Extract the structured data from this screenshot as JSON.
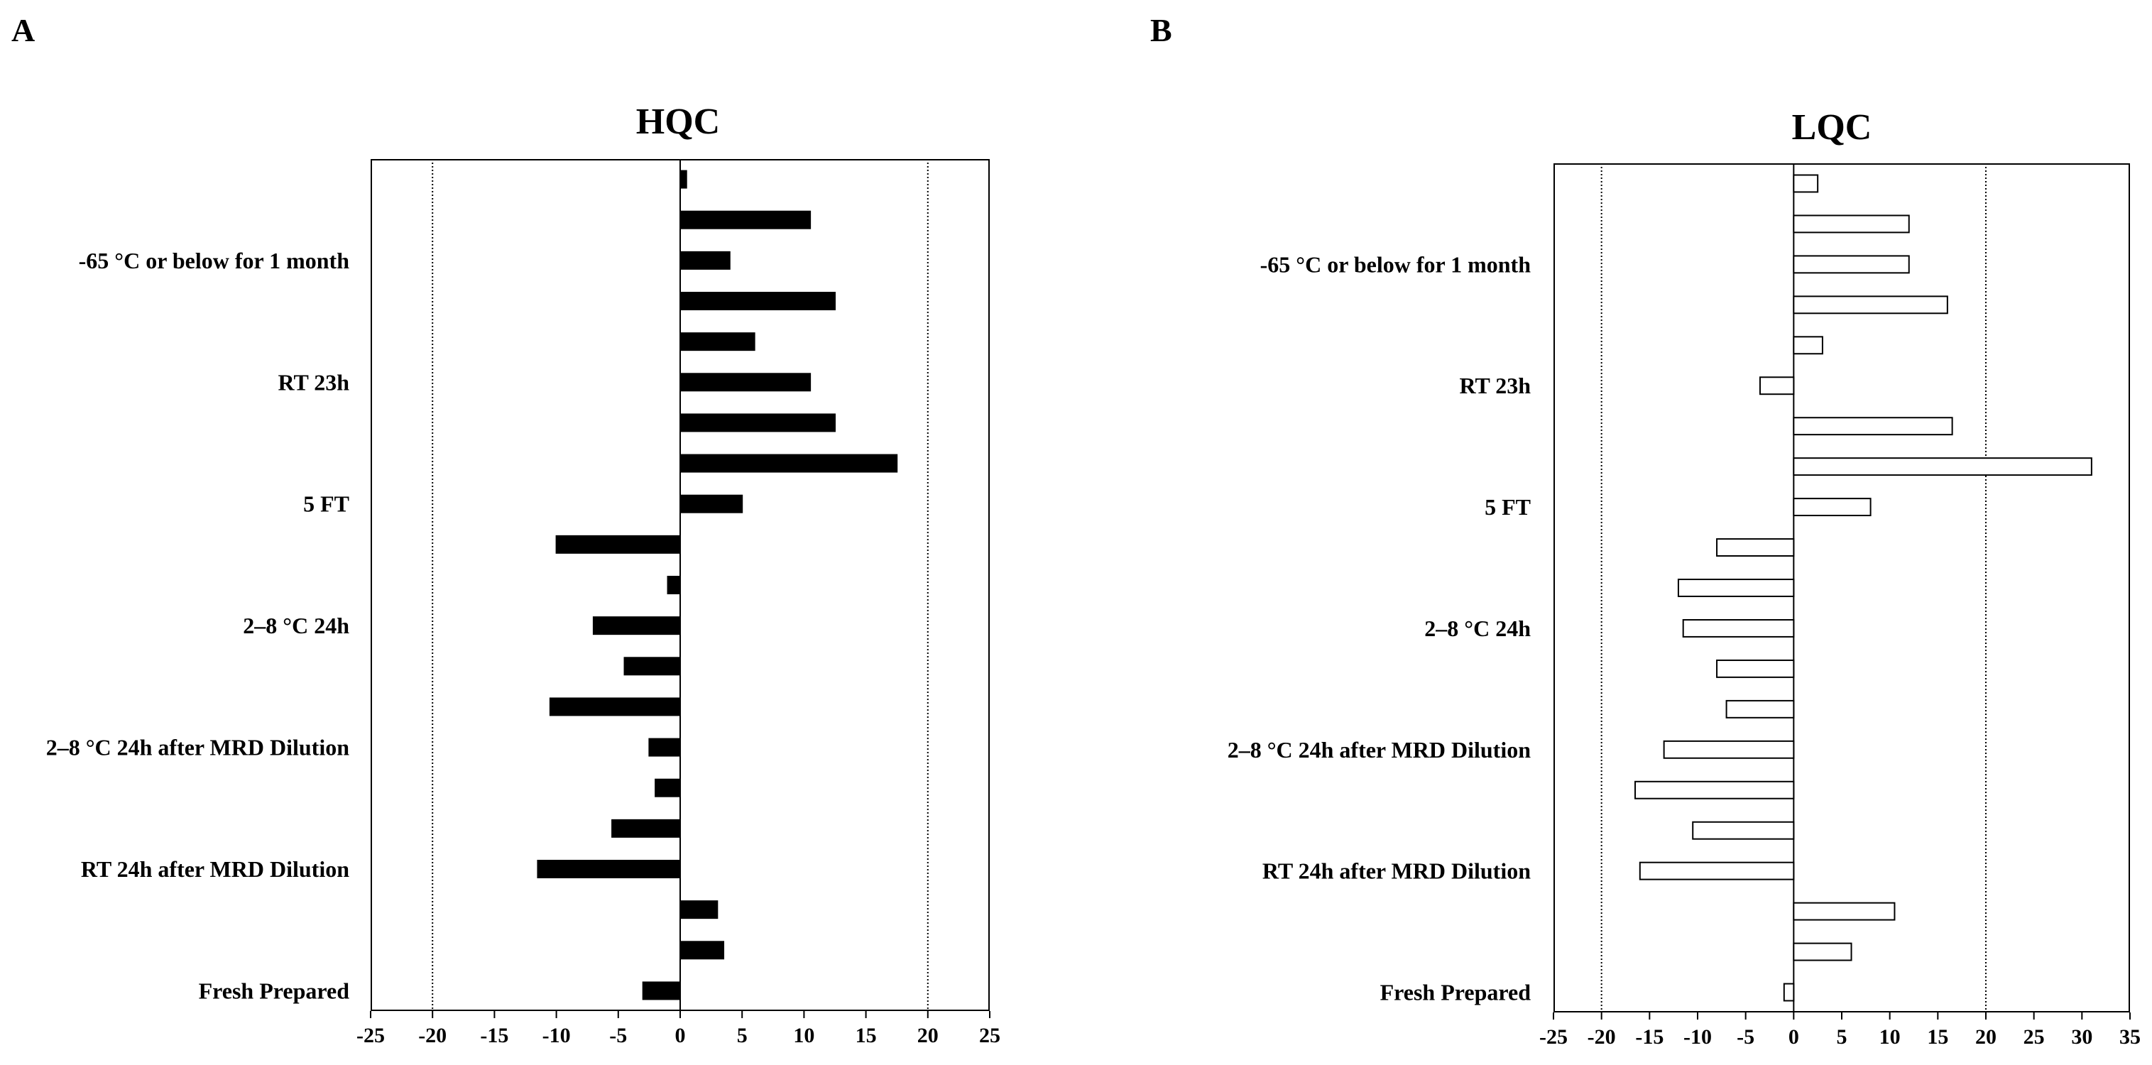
{
  "panels": [
    {
      "letter": "A"
    },
    {
      "letter": "B"
    }
  ],
  "chart_data": [
    {
      "type": "bar",
      "orientation": "horizontal",
      "title": "HQC",
      "fill": "#000000",
      "categories_top_to_bottom": [
        "-65 °C or below for 1 month",
        "RT 23h",
        "5 FT",
        "2–8 °C 24h",
        "2–8 °C 24h after MRD Dilution",
        "RT 24h after MRD Dilution",
        "Fresh Prepared"
      ],
      "values_top_to_bottom": [
        0.5,
        10.5,
        4,
        12.5,
        6,
        10.5,
        12.5,
        17.5,
        5,
        -10,
        -1,
        -7,
        -4.5,
        -10.5,
        -2.5,
        -2,
        -5.5,
        -11.5,
        3,
        3.5,
        -3
      ],
      "category_bar_index": [
        2,
        5,
        8,
        11,
        14,
        17,
        20
      ],
      "xlim": [
        -25,
        25
      ],
      "xticks": [
        "-25",
        "-20",
        "-15",
        "-10",
        "-5",
        "0",
        "5",
        "10",
        "15",
        "20",
        "25"
      ],
      "xtick_values": [
        -25,
        -20,
        -15,
        -10,
        -5,
        0,
        5,
        10,
        15,
        20,
        25
      ],
      "reference_lines": [
        -20,
        20
      ]
    },
    {
      "type": "bar",
      "orientation": "horizontal",
      "title": "LQC",
      "fill": "#ffffff",
      "categories_top_to_bottom": [
        "-65 °C or below for 1 month",
        "RT 23h",
        "5 FT",
        "2–8 °C 24h",
        "2–8 °C 24h after MRD  Dilution",
        "RT 24h after MRD Dilution",
        "Fresh Prepared"
      ],
      "values_top_to_bottom": [
        2.5,
        12,
        12,
        16,
        3,
        -3.5,
        16.5,
        31,
        8,
        -8,
        -12,
        -11.5,
        -8,
        -7,
        -13.5,
        -16.5,
        -10.5,
        -16,
        10.5,
        6,
        -1
      ],
      "category_bar_index": [
        2,
        5,
        8,
        11,
        14,
        17,
        20
      ],
      "xlim": [
        -25,
        35
      ],
      "xticks": [
        "-25",
        "-20",
        "-15",
        "-10",
        "-5",
        "0",
        "5",
        "10",
        "15",
        "20",
        "25",
        "30",
        "35"
      ],
      "xtick_values": [
        -25,
        -20,
        -15,
        -10,
        -5,
        0,
        5,
        10,
        15,
        20,
        25,
        30,
        35
      ],
      "reference_lines": [
        -20,
        20
      ]
    }
  ]
}
